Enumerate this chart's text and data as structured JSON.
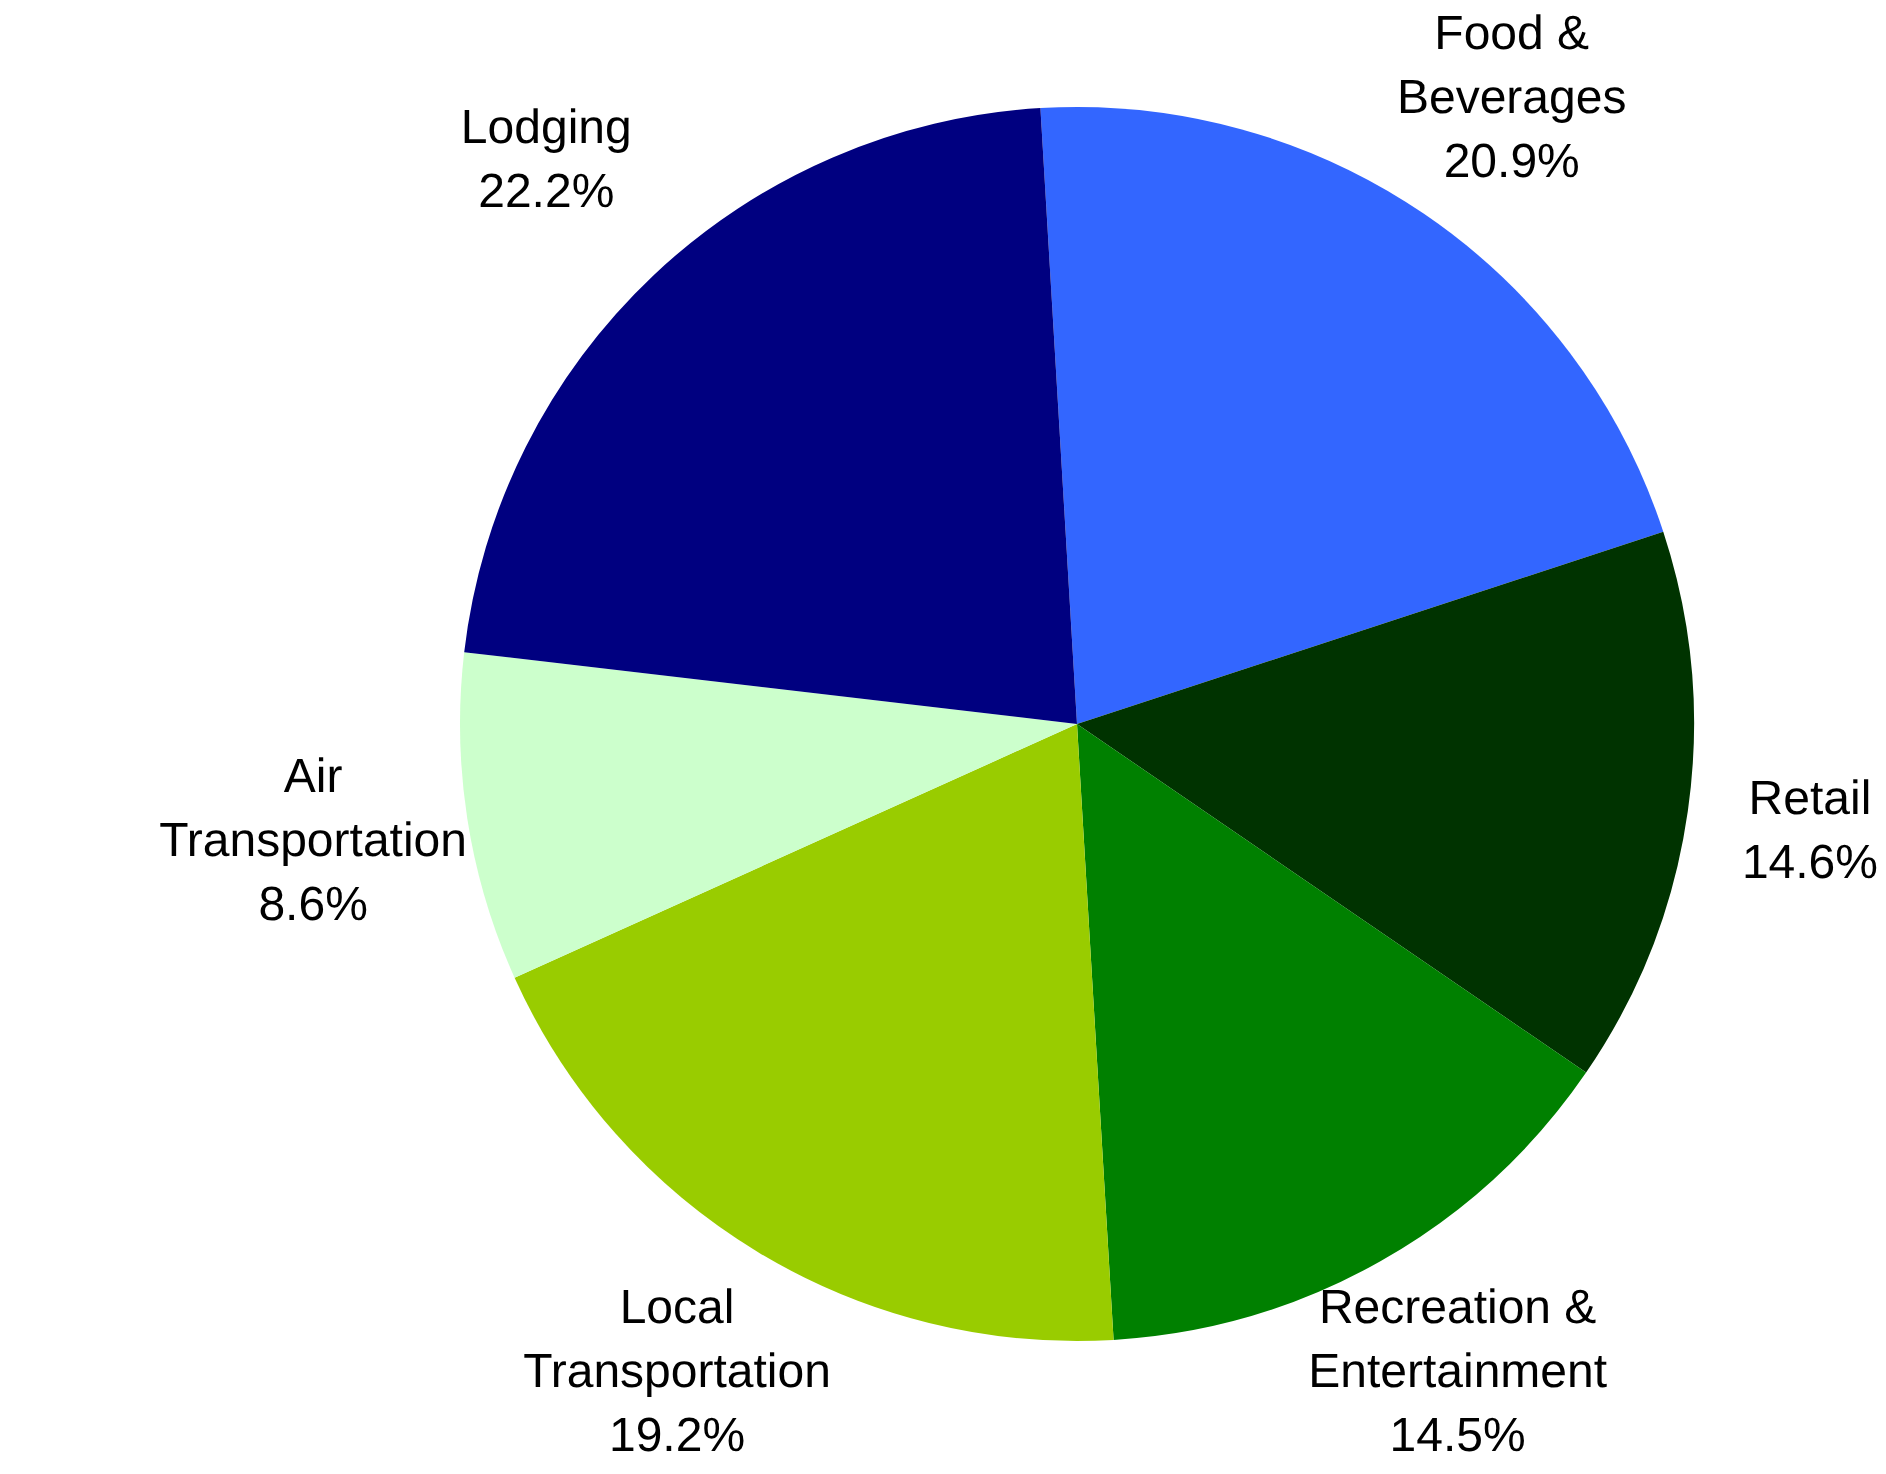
{
  "chart_data": {
    "type": "pie",
    "categories": [
      "Food & Beverages",
      "Retail",
      "Recreation & Entertainment",
      "Local Transportation",
      "Air Transportation",
      "Lodging"
    ],
    "values": [
      20.9,
      14.6,
      14.5,
      19.2,
      8.6,
      22.2
    ],
    "value_labels": [
      "20.9%",
      "14.6%",
      "14.5%",
      "19.2%",
      "8.6%",
      "22.2%"
    ],
    "colors": [
      "#3366ff",
      "#003300",
      "#008000",
      "#99cc00",
      "#ccffcc",
      "#000080"
    ],
    "legend": false
  }
}
